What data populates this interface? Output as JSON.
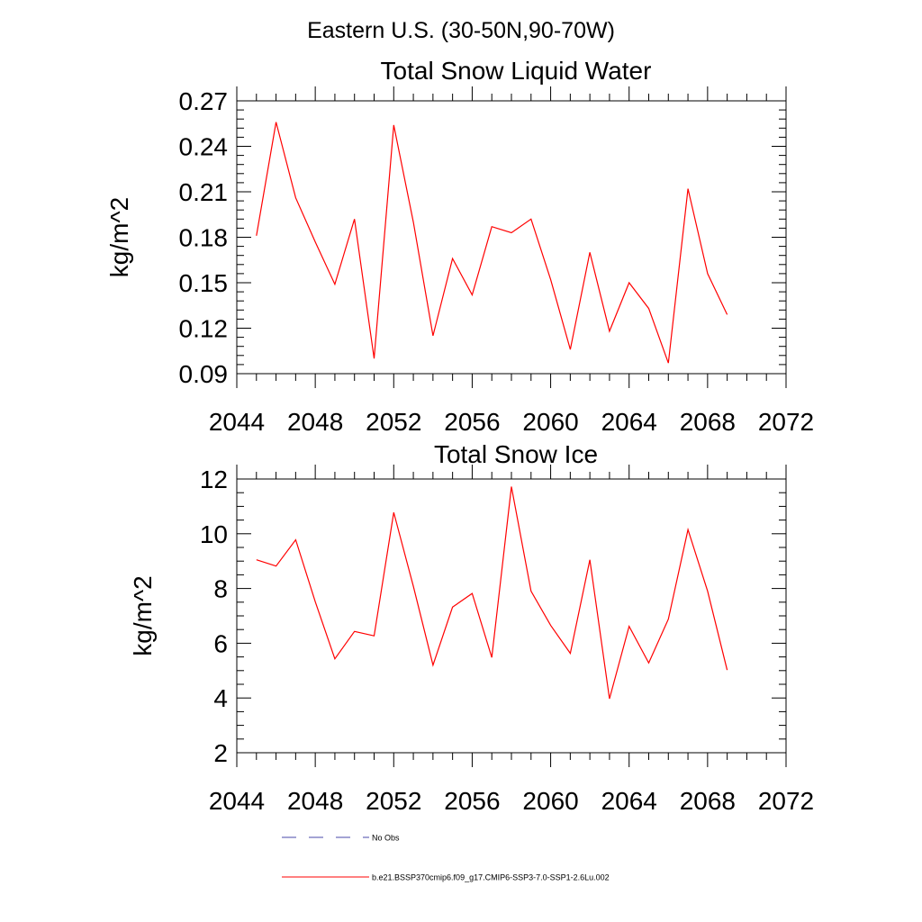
{
  "region_title": "Eastern U.S. (30-50N,90-70W)",
  "legend": {
    "entries": [
      {
        "label": "No Obs",
        "color": "#4a4aa8",
        "style": "dashed"
      },
      {
        "label": "b.e21.BSSP370cmip6.f09_g17.CMIP6-SSP3-7.0-SSP1-2.6Lu.002",
        "color": "#ff0000",
        "style": "solid"
      }
    ]
  },
  "chart_data": [
    {
      "type": "line",
      "title": "Total Snow Liquid Water",
      "xlabel": "",
      "ylabel": "kg/m^2",
      "xlim": [
        2044,
        2072
      ],
      "ylim": [
        0.09,
        0.27
      ],
      "xticks": [
        2044,
        2048,
        2052,
        2056,
        2060,
        2064,
        2068,
        2072
      ],
      "xtick_labels": [
        "2044",
        "2048",
        "2052",
        "2056",
        "2060",
        "2064",
        "2068",
        "2072"
      ],
      "yticks": [
        0.09,
        0.12,
        0.15,
        0.18,
        0.21,
        0.24,
        0.27
      ],
      "ytick_labels": [
        "0.09",
        "0.12",
        "0.15",
        "0.18",
        "0.21",
        "0.24",
        "0.27"
      ],
      "grid": false,
      "color": "#ff0000",
      "x": [
        2045,
        2046,
        2047,
        2048,
        2049,
        2050,
        2051,
        2052,
        2053,
        2054,
        2055,
        2056,
        2057,
        2058,
        2059,
        2060,
        2061,
        2062,
        2063,
        2064,
        2065,
        2066,
        2067,
        2068,
        2069
      ],
      "y": [
        0.181,
        0.256,
        0.206,
        0.177,
        0.149,
        0.192,
        0.1,
        0.254,
        0.19,
        0.115,
        0.166,
        0.142,
        0.187,
        0.183,
        0.192,
        0.152,
        0.106,
        0.17,
        0.118,
        0.15,
        0.133,
        0.097,
        0.212,
        0.156,
        0.129
      ]
    },
    {
      "type": "line",
      "title": "Total Snow Ice",
      "xlabel": "",
      "ylabel": "kg/m^2",
      "xlim": [
        2044,
        2072
      ],
      "ylim": [
        2,
        12
      ],
      "xticks": [
        2044,
        2048,
        2052,
        2056,
        2060,
        2064,
        2068,
        2072
      ],
      "xtick_labels": [
        "2044",
        "2048",
        "2052",
        "2056",
        "2060",
        "2064",
        "2068",
        "2072"
      ],
      "yticks": [
        2,
        4,
        6,
        8,
        10,
        12
      ],
      "ytick_labels": [
        "2",
        "4",
        "6",
        "8",
        "10",
        "12"
      ],
      "grid": false,
      "color": "#ff0000",
      "x": [
        2045,
        2046,
        2047,
        2048,
        2049,
        2050,
        2051,
        2052,
        2053,
        2054,
        2055,
        2056,
        2057,
        2058,
        2059,
        2060,
        2061,
        2062,
        2063,
        2064,
        2065,
        2066,
        2067,
        2068,
        2069
      ],
      "y": [
        9.05,
        8.82,
        9.78,
        7.52,
        5.43,
        6.43,
        6.27,
        10.78,
        8.08,
        5.2,
        7.32,
        7.82,
        5.48,
        11.72,
        7.9,
        6.65,
        5.63,
        9.05,
        3.97,
        6.62,
        5.28,
        6.88,
        10.15,
        7.9,
        5.02
      ]
    }
  ]
}
